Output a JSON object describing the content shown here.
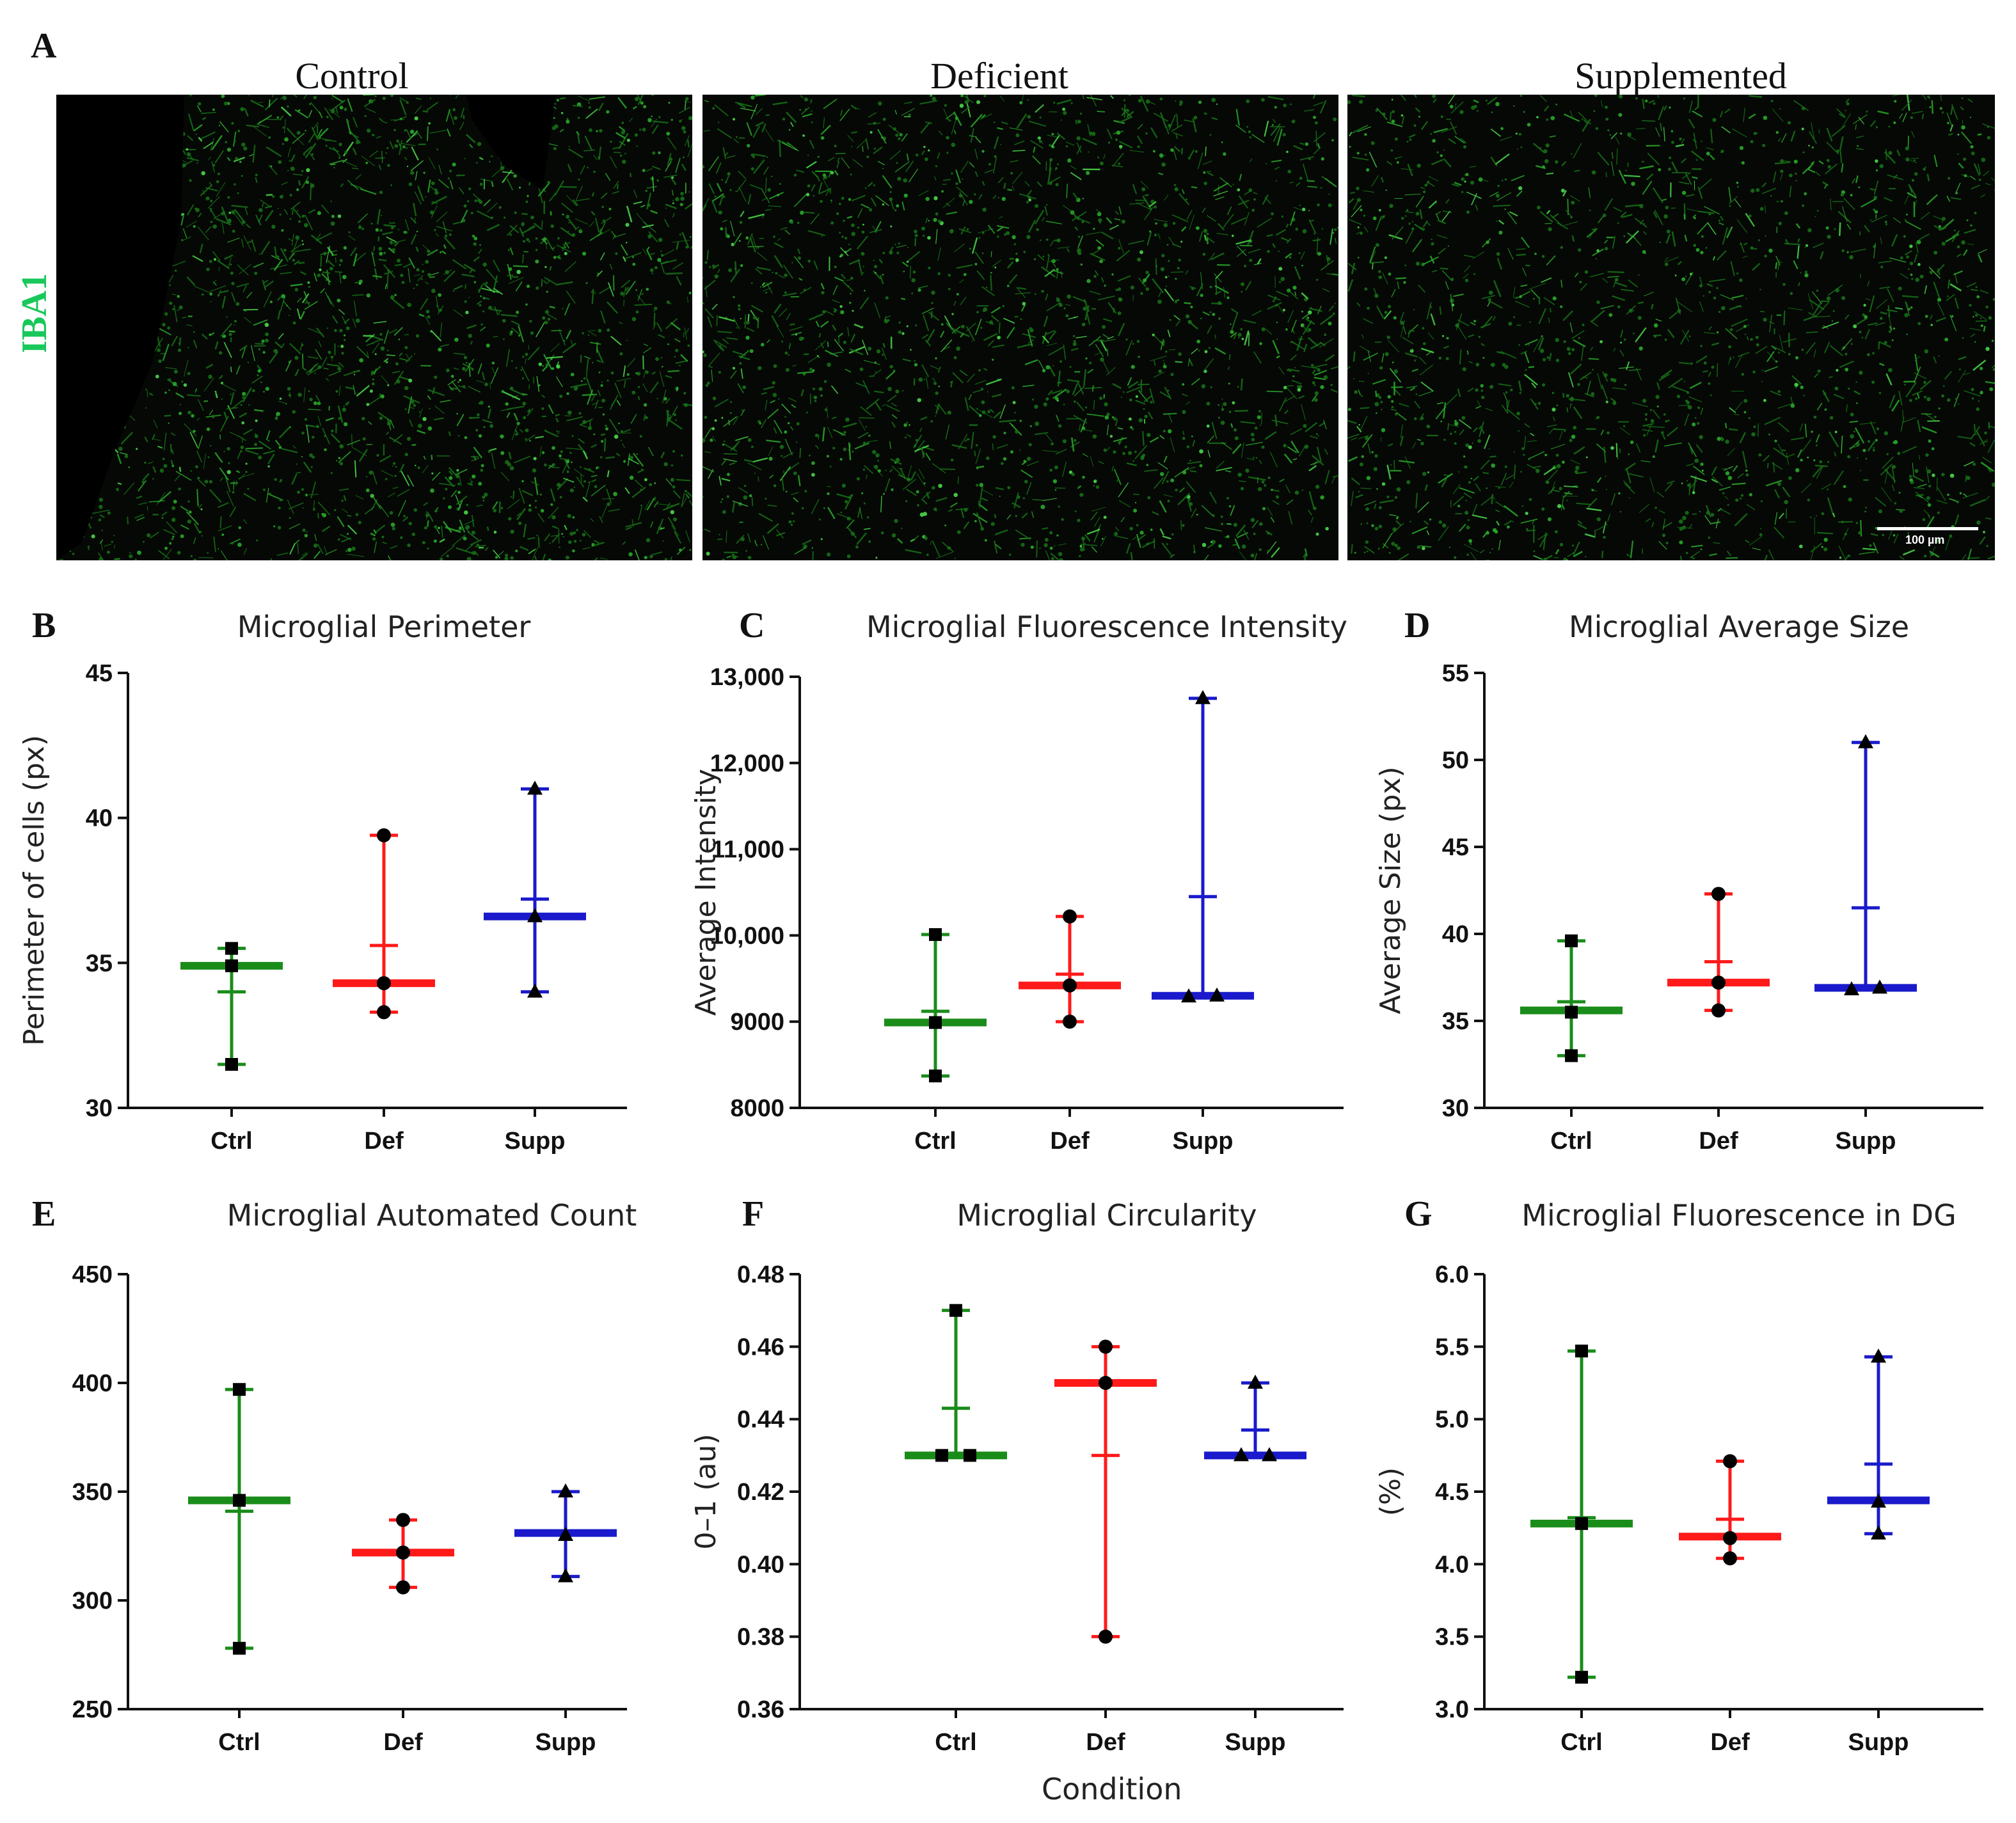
{
  "figure": {
    "panel_a_letter": "A",
    "conditions": [
      "Control",
      "Deficient",
      "Supplemented"
    ],
    "stain_label": "IBA1",
    "stain_color": "#18c85a",
    "scale_bar_label": "100 µm",
    "x_axis_label": "Condition"
  },
  "colors": {
    "Ctrl": "#1a8c1a",
    "Def": "#ff1a1a",
    "Supp": "#1a1acc"
  },
  "chart_data": [
    {
      "panel": "B",
      "type": "scatter",
      "title": "Microglial Perimeter",
      "ylabel": "Perimeter of cells (px)",
      "xlabel": "",
      "categories": [
        "Ctrl",
        "Def",
        "Supp"
      ],
      "ylim": [
        30,
        45
      ],
      "yticks": [
        30,
        35,
        40,
        45
      ],
      "ytick_labels": [
        "30",
        "35",
        "40",
        "45"
      ],
      "series": [
        {
          "name": "Ctrl",
          "marker": "square",
          "points": [
            31.5,
            34.9,
            35.5
          ],
          "median": 34.9,
          "mean": 34.0,
          "min": 31.5,
          "max": 35.5
        },
        {
          "name": "Def",
          "marker": "circle",
          "points": [
            33.3,
            34.3,
            39.4
          ],
          "median": 34.3,
          "mean": 35.6,
          "min": 33.3,
          "max": 39.4
        },
        {
          "name": "Supp",
          "marker": "triangle",
          "points": [
            34.0,
            36.6,
            41.0
          ],
          "median": 36.6,
          "mean": 37.2,
          "min": 34.0,
          "max": 41.0
        }
      ]
    },
    {
      "panel": "C",
      "type": "scatter",
      "title": "Microglial Fluorescence Intensity",
      "ylabel": "Average Intensity",
      "xlabel": "",
      "categories": [
        "Ctrl",
        "Def",
        "Supp"
      ],
      "ylim": [
        8000,
        13000
      ],
      "yticks": [
        8000,
        9000,
        10000,
        11000,
        12000,
        13000
      ],
      "ytick_labels": [
        "8000",
        "9000",
        "10,000",
        "11,000",
        "12,000",
        "13,000"
      ],
      "series": [
        {
          "name": "Ctrl",
          "marker": "square",
          "points": [
            8370,
            8990,
            10010
          ],
          "median": 8990,
          "mean": 9120,
          "min": 8370,
          "max": 10010
        },
        {
          "name": "Def",
          "marker": "circle",
          "points": [
            9000,
            9420,
            10220
          ],
          "median": 9420,
          "mean": 9550,
          "min": 9000,
          "max": 10220
        },
        {
          "name": "Supp",
          "marker": "triangle",
          "points": [
            9290,
            9300,
            12750
          ],
          "median": 9300,
          "mean": 10450,
          "min": 9290,
          "max": 12750
        }
      ]
    },
    {
      "panel": "D",
      "type": "scatter",
      "title": "Microglial Average Size",
      "ylabel": "Average Size (px)",
      "xlabel": "",
      "categories": [
        "Ctrl",
        "Def",
        "Supp"
      ],
      "ylim": [
        30,
        55
      ],
      "yticks": [
        30,
        35,
        40,
        45,
        50,
        55
      ],
      "ytick_labels": [
        "30",
        "35",
        "40",
        "45",
        "50",
        "55"
      ],
      "series": [
        {
          "name": "Ctrl",
          "marker": "square",
          "points": [
            33.0,
            35.5,
            39.6
          ],
          "median": 35.6,
          "mean": 36.1,
          "min": 33.0,
          "max": 39.6
        },
        {
          "name": "Def",
          "marker": "circle",
          "points": [
            35.6,
            37.2,
            42.3
          ],
          "median": 37.2,
          "mean": 38.4,
          "min": 35.6,
          "max": 42.3
        },
        {
          "name": "Supp",
          "marker": "triangle",
          "points": [
            36.8,
            36.9,
            51.0
          ],
          "median": 36.9,
          "mean": 41.5,
          "min": 36.8,
          "max": 51.0
        }
      ]
    },
    {
      "panel": "E",
      "type": "scatter",
      "title": "Microglial Automated Count",
      "ylabel": "",
      "xlabel": "",
      "categories": [
        "Ctrl",
        "Def",
        "Supp"
      ],
      "ylim": [
        250,
        450
      ],
      "yticks": [
        250,
        300,
        350,
        400,
        450
      ],
      "ytick_labels": [
        "250",
        "300",
        "350",
        "400",
        "450"
      ],
      "series": [
        {
          "name": "Ctrl",
          "marker": "square",
          "points": [
            278,
            346,
            397
          ],
          "median": 346,
          "mean": 341,
          "min": 278,
          "max": 397
        },
        {
          "name": "Def",
          "marker": "circle",
          "points": [
            306,
            322,
            337
          ],
          "median": 322,
          "mean": 322,
          "min": 306,
          "max": 337
        },
        {
          "name": "Supp",
          "marker": "triangle",
          "points": [
            311,
            330,
            350
          ],
          "median": 331,
          "mean": 331,
          "min": 311,
          "max": 350
        }
      ]
    },
    {
      "panel": "F",
      "type": "scatter",
      "title": "Microglial Circularity",
      "ylabel": "0–1 (au)",
      "xlabel": "Condition",
      "categories": [
        "Ctrl",
        "Def",
        "Supp"
      ],
      "ylim": [
        0.36,
        0.48
      ],
      "yticks": [
        0.36,
        0.38,
        0.4,
        0.42,
        0.44,
        0.46,
        0.48
      ],
      "ytick_labels": [
        "0.36",
        "0.38",
        "0.40",
        "0.42",
        "0.44",
        "0.46",
        "0.48"
      ],
      "series": [
        {
          "name": "Ctrl",
          "marker": "square",
          "points": [
            0.43,
            0.43,
            0.47
          ],
          "median": 0.43,
          "mean": 0.443,
          "min": 0.43,
          "max": 0.47
        },
        {
          "name": "Def",
          "marker": "circle",
          "points": [
            0.38,
            0.45,
            0.46
          ],
          "median": 0.45,
          "mean": 0.43,
          "min": 0.38,
          "max": 0.46
        },
        {
          "name": "Supp",
          "marker": "triangle",
          "points": [
            0.43,
            0.43,
            0.45
          ],
          "median": 0.43,
          "mean": 0.437,
          "min": 0.43,
          "max": 0.45
        }
      ]
    },
    {
      "panel": "G",
      "type": "scatter",
      "title": "Microglial Fluorescence in DG",
      "ylabel": "(%)",
      "xlabel": "",
      "categories": [
        "Ctrl",
        "Def",
        "Supp"
      ],
      "ylim": [
        3.0,
        6.0
      ],
      "yticks": [
        3.0,
        3.5,
        4.0,
        4.5,
        5.0,
        5.5,
        6.0
      ],
      "ytick_labels": [
        "3.0",
        "3.5",
        "4.0",
        "4.5",
        "5.0",
        "5.5",
        "6.0"
      ],
      "series": [
        {
          "name": "Ctrl",
          "marker": "square",
          "points": [
            3.22,
            4.28,
            5.47
          ],
          "median": 4.28,
          "mean": 4.32,
          "min": 3.22,
          "max": 5.47
        },
        {
          "name": "Def",
          "marker": "circle",
          "points": [
            4.04,
            4.18,
            4.71
          ],
          "median": 4.19,
          "mean": 4.31,
          "min": 4.04,
          "max": 4.71
        },
        {
          "name": "Supp",
          "marker": "triangle",
          "points": [
            4.21,
            4.43,
            5.43
          ],
          "median": 4.44,
          "mean": 4.69,
          "min": 4.21,
          "max": 5.43
        }
      ]
    }
  ]
}
